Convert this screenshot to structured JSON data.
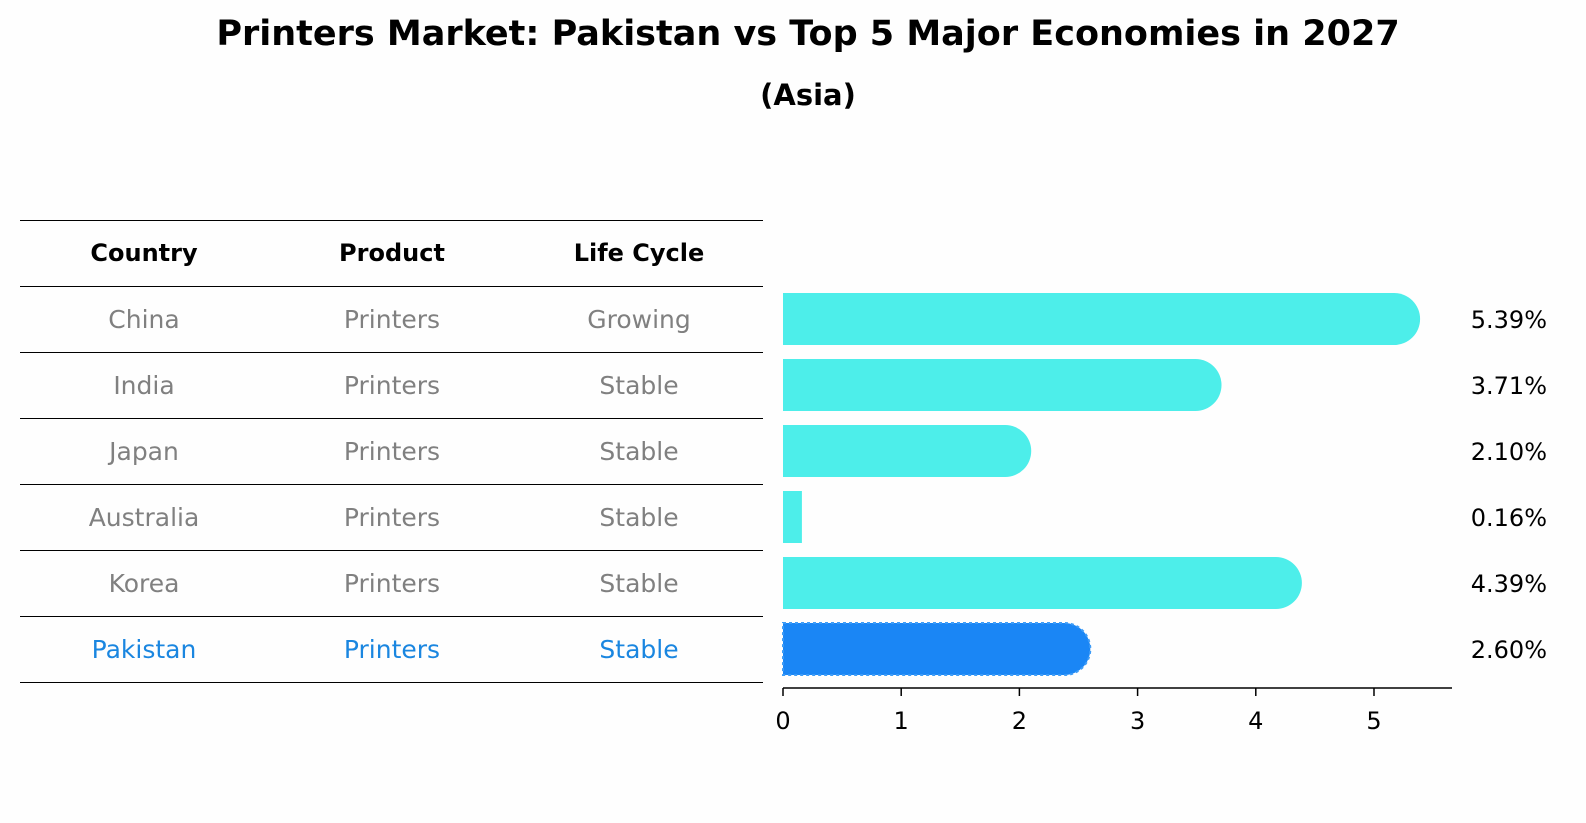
{
  "title": "Printers Market: Pakistan vs Top 5 Major Economies in 2027",
  "subtitle": "(Asia)",
  "table": {
    "headers": [
      "Country",
      "Product",
      "Life Cycle"
    ],
    "rows": [
      [
        "China",
        "Printers",
        "Growing"
      ],
      [
        "India",
        "Printers",
        "Stable"
      ],
      [
        "Japan",
        "Printers",
        "Stable"
      ],
      [
        "Australia",
        "Printers",
        "Stable"
      ],
      [
        "Korea",
        "Printers",
        "Stable"
      ],
      [
        "Pakistan",
        "Printers",
        "Stable"
      ]
    ],
    "highlight_row": "Pakistan"
  },
  "colors": {
    "bar": "#4deeea",
    "highlight": "#1a86f5",
    "highlight_text": "#1a86e0",
    "muted_text": "#808080"
  },
  "chart_data": {
    "type": "bar",
    "orientation": "horizontal",
    "categories": [
      "China",
      "India",
      "Japan",
      "Australia",
      "Korea",
      "Pakistan"
    ],
    "values": [
      5.39,
      3.71,
      2.1,
      0.16,
      4.39,
      2.6
    ],
    "value_labels": [
      "5.39%",
      "3.71%",
      "2.10%",
      "0.16%",
      "4.39%",
      "2.60%"
    ],
    "highlight_category": "Pakistan",
    "xlim": [
      0,
      5.66
    ],
    "xticks": [
      0,
      1,
      2,
      3,
      4,
      5
    ],
    "xlabel": "",
    "ylabel": "",
    "grid": false
  }
}
